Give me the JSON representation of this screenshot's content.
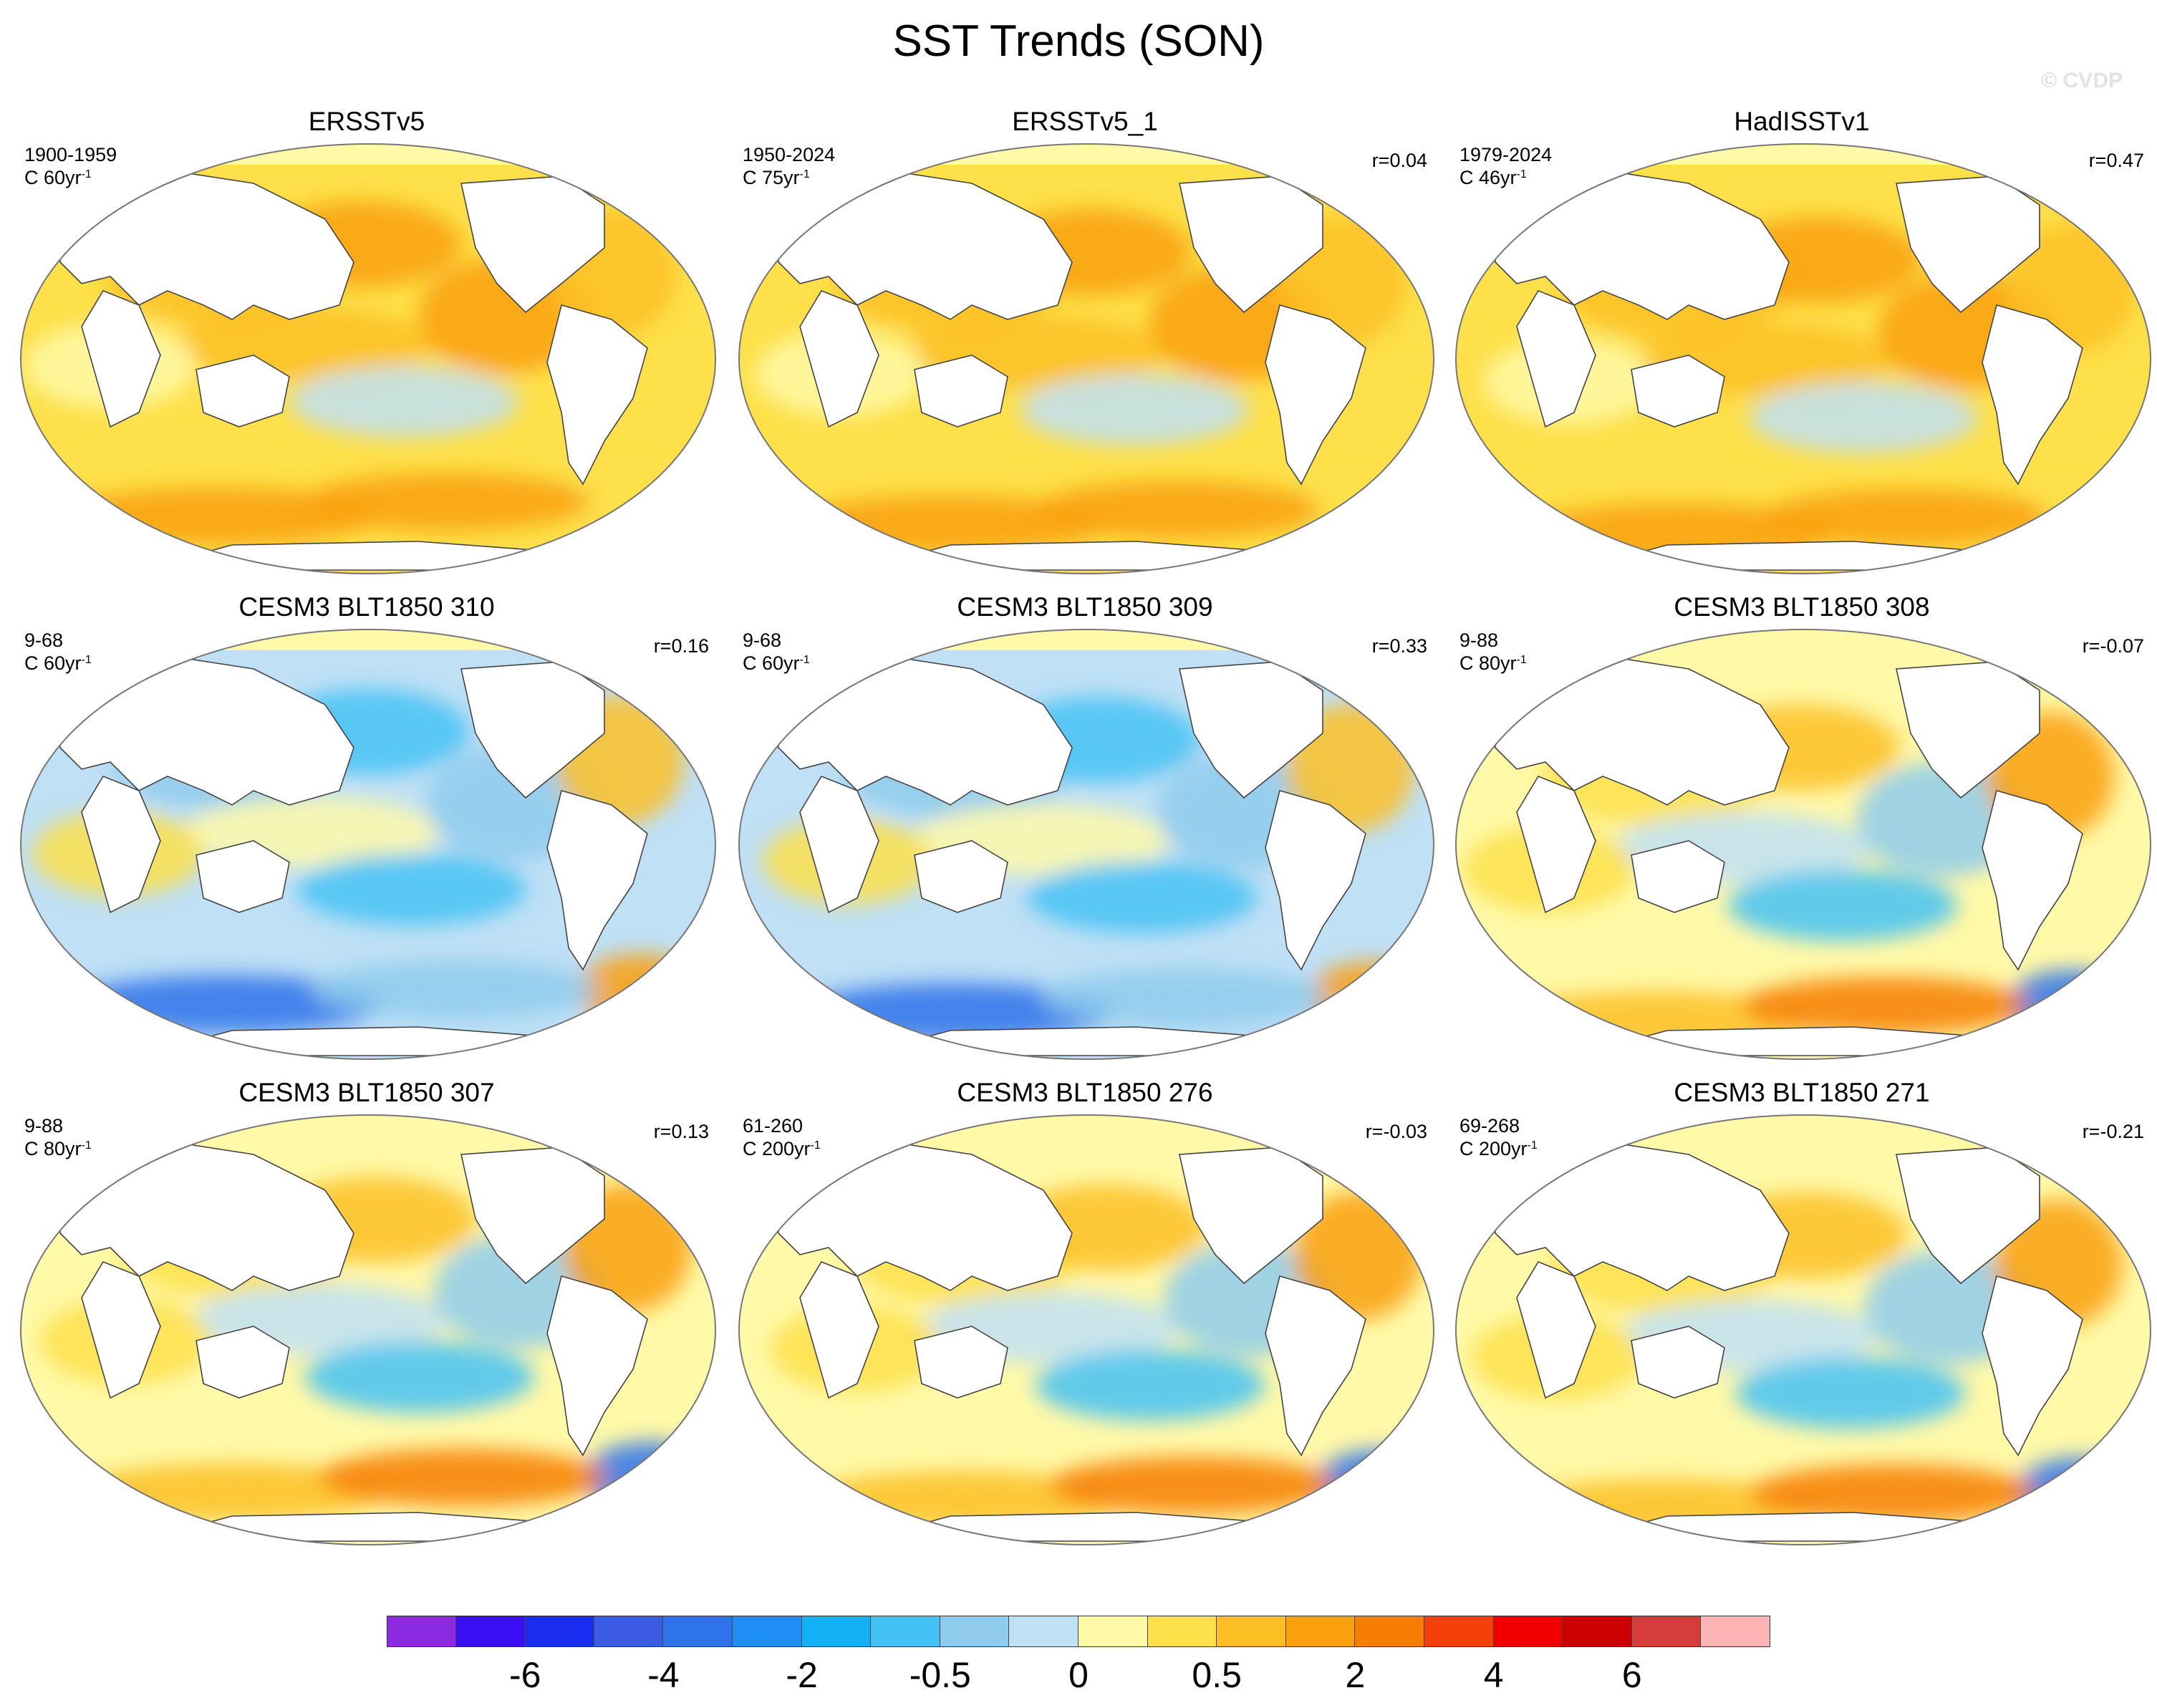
{
  "title": "SST Trends (SON)",
  "watermark": "© CVDP",
  "panels": [
    {
      "title": "ERSSTv5",
      "period": "1900-1959",
      "scale": "C 60yr",
      "scale_exp": "-1",
      "corr": ""
    },
    {
      "title": "ERSSTv5_1",
      "period": "1950-2024",
      "scale": "C 75yr",
      "scale_exp": "-1",
      "corr": "r=0.04"
    },
    {
      "title": "HadISSTv1",
      "period": "1979-2024",
      "scale": "C 46yr",
      "scale_exp": "-1",
      "corr": "r=0.47"
    },
    {
      "title": "CESM3 BLT1850 310",
      "period": "9-68",
      "scale": "C 60yr",
      "scale_exp": "-1",
      "corr": "r=0.16"
    },
    {
      "title": "CESM3 BLT1850 309",
      "period": "9-68",
      "scale": "C 60yr",
      "scale_exp": "-1",
      "corr": "r=0.33"
    },
    {
      "title": "CESM3 BLT1850 308",
      "period": "9-88",
      "scale": "C 80yr",
      "scale_exp": "-1",
      "corr": "r=-0.07"
    },
    {
      "title": "CESM3 BLT1850 307",
      "period": "9-88",
      "scale": "C 80yr",
      "scale_exp": "-1",
      "corr": "r=0.13"
    },
    {
      "title": "CESM3 BLT1850 276",
      "period": "61-260",
      "scale": "C 200yr",
      "scale_exp": "-1",
      "corr": "r=-0.03"
    },
    {
      "title": "CESM3 BLT1850 271",
      "period": "69-268",
      "scale": "C 200yr",
      "scale_exp": "-1",
      "corr": "r=-0.21"
    }
  ],
  "colorbar": {
    "colors": [
      "#8a2be2",
      "#3a0ff5",
      "#1a2cf0",
      "#3b5be0",
      "#2e73ea",
      "#1f8ff5",
      "#12b0f5",
      "#45c2f5",
      "#8ecbec",
      "#bfe0f5",
      "#fff9a8",
      "#fde04a",
      "#fbbf24",
      "#f9a00c",
      "#f77e05",
      "#f5400c",
      "#f20000",
      "#cc0000",
      "#d63c3c",
      "#fcb4b4"
    ],
    "labels": [
      "-6",
      "-4",
      "-2",
      "-0.5",
      "0",
      "0.5",
      "2",
      "4",
      "6"
    ]
  },
  "panel_styles": [
    "warm",
    "warm",
    "warm",
    "cool",
    "cool",
    "mixed",
    "mixed",
    "mixed",
    "mixed"
  ]
}
